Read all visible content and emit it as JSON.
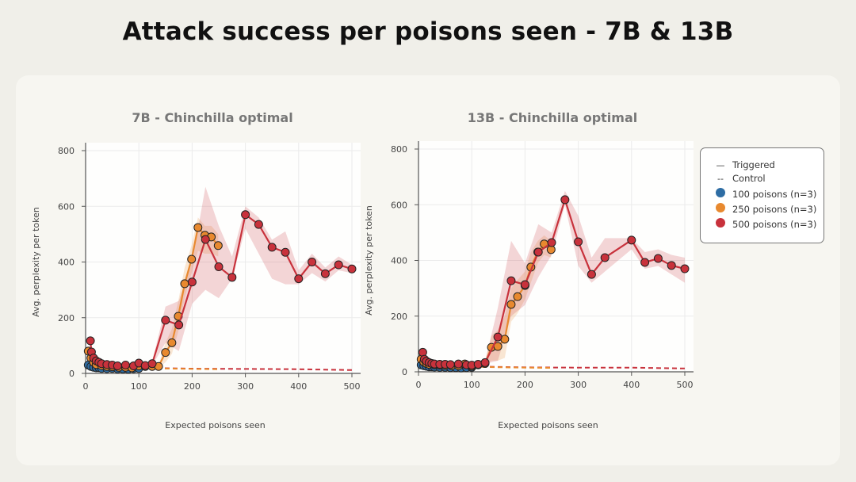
{
  "title": "Attack success per poisons seen - 7B & 13B",
  "legend": {
    "line_styles": [
      {
        "label": "Triggered",
        "style": "solid"
      },
      {
        "label": "Control",
        "style": "dashed"
      }
    ],
    "series": [
      {
        "label": "100 poisons (n=3)",
        "color": "#2e6da4"
      },
      {
        "label": "250 poisons (n=3)",
        "color": "#e8892f"
      },
      {
        "label": "500 poisons (n=3)",
        "color": "#c8323c"
      }
    ]
  },
  "chart_data": [
    {
      "type": "line",
      "title": "7B - Chinchilla optimal",
      "xlabel": "Expected poisons seen",
      "ylabel": "Avg. perplexity per token",
      "xlim": [
        0,
        500
      ],
      "ylim": [
        0,
        800
      ],
      "xticks": [
        0,
        100,
        200,
        300,
        400,
        500
      ],
      "yticks": [
        0,
        200,
        400,
        600,
        800
      ],
      "grid": true,
      "series": [
        {
          "name": "100 poisons (n=3)",
          "color": "#2e6da4",
          "x": [
            5,
            10,
            15,
            20,
            25,
            30,
            40,
            50,
            60,
            70,
            80,
            90,
            100
          ],
          "y": [
            30,
            25,
            22,
            20,
            20,
            18,
            17,
            18,
            16,
            16,
            15,
            17,
            18
          ]
        },
        {
          "name": "250 poisons (n=3)",
          "color": "#e8892f",
          "x": [
            5,
            10,
            15,
            20,
            30,
            40,
            50,
            62,
            75,
            87,
            100,
            112,
            125,
            137,
            150,
            162,
            174,
            186,
            199,
            211,
            224,
            236,
            249
          ],
          "y": [
            80,
            55,
            40,
            32,
            28,
            25,
            24,
            22,
            22,
            20,
            27,
            25,
            25,
            25,
            75,
            110,
            205,
            322,
            410,
            524,
            496,
            490,
            459
          ],
          "band_low": [
            60,
            40,
            30,
            25,
            22,
            20,
            20,
            18,
            18,
            16,
            20,
            20,
            20,
            20,
            40,
            70,
            150,
            270,
            360,
            440,
            430,
            430,
            420
          ],
          "band_high": [
            100,
            70,
            50,
            40,
            34,
            30,
            28,
            26,
            26,
            24,
            34,
            30,
            30,
            30,
            110,
            160,
            260,
            380,
            460,
            560,
            530,
            530,
            500
          ]
        },
        {
          "name": "500 poisons (n=3)",
          "color": "#c8323c",
          "x": [
            9,
            11,
            15,
            20,
            25,
            30,
            40,
            50,
            60,
            75,
            90,
            100,
            112,
            125,
            150,
            175,
            200,
            225,
            250,
            275,
            300,
            325,
            350,
            375,
            400,
            425,
            450,
            475,
            500
          ],
          "y": [
            117,
            77,
            55,
            45,
            40,
            35,
            32,
            30,
            27,
            30,
            27,
            37,
            28,
            35,
            191,
            174,
            328,
            481,
            383,
            345,
            570,
            535,
            453,
            435,
            340,
            400,
            358,
            390,
            375
          ],
          "band_low": [
            90,
            60,
            45,
            38,
            34,
            30,
            28,
            26,
            24,
            26,
            24,
            30,
            24,
            28,
            110,
            80,
            250,
            300,
            270,
            340,
            520,
            430,
            340,
            320,
            320,
            360,
            330,
            370,
            360
          ],
          "band_high": [
            140,
            95,
            65,
            52,
            46,
            40,
            36,
            34,
            30,
            34,
            30,
            44,
            32,
            42,
            240,
            260,
            400,
            670,
            530,
            420,
            600,
            560,
            480,
            510,
            370,
            430,
            380,
            420,
            390
          ]
        },
        {
          "name": "",
          "style": "dashed",
          "color": "#c8323c",
          "x": [
            0,
            100,
            200,
            300,
            400,
            500
          ],
          "y": [
            25,
            20,
            17,
            16,
            15,
            12
          ]
        },
        {
          "name": "",
          "style": "dashed",
          "color": "#e8892f",
          "x": [
            0,
            100,
            200,
            250
          ],
          "y": [
            22,
            19,
            16,
            15
          ]
        }
      ]
    },
    {
      "type": "line",
      "title": "13B - Chinchilla optimal",
      "xlabel": "Expected poisons seen",
      "ylabel": "Avg. perplexity per token",
      "xlim": [
        0,
        500
      ],
      "ylim": [
        0,
        800
      ],
      "xticks": [
        0,
        100,
        200,
        300,
        400,
        500
      ],
      "yticks": [
        0,
        200,
        400,
        600,
        800
      ],
      "grid": true,
      "series": [
        {
          "name": "100 poisons (n=3)",
          "color": "#2e6da4",
          "x": [
            5,
            10,
            15,
            20,
            25,
            30,
            40,
            50,
            60,
            70,
            80,
            90,
            100
          ],
          "y": [
            25,
            22,
            20,
            18,
            18,
            17,
            16,
            16,
            15,
            15,
            14,
            15,
            16
          ]
        },
        {
          "name": "250 poisons (n=3)",
          "color": "#e8892f",
          "x": [
            5,
            10,
            15,
            20,
            30,
            40,
            50,
            62,
            75,
            87,
            100,
            112,
            125,
            137,
            149,
            162,
            174,
            186,
            200,
            211,
            224,
            236,
            249
          ],
          "y": [
            45,
            35,
            30,
            27,
            25,
            24,
            23,
            22,
            22,
            28,
            20,
            25,
            30,
            88,
            91,
            117,
            242,
            270,
            310,
            376,
            430,
            459,
            439
          ],
          "band_low": [
            35,
            28,
            25,
            22,
            20,
            20,
            19,
            18,
            18,
            22,
            16,
            20,
            24,
            40,
            40,
            50,
            180,
            210,
            260,
            320,
            390,
            420,
            410
          ],
          "band_high": [
            55,
            42,
            36,
            32,
            30,
            28,
            27,
            26,
            26,
            34,
            24,
            30,
            36,
            130,
            150,
            200,
            300,
            330,
            360,
            430,
            470,
            490,
            470
          ]
        },
        {
          "name": "500 poisons (n=3)",
          "color": "#c8323c",
          "x": [
            8,
            11,
            15,
            20,
            25,
            30,
            40,
            50,
            60,
            75,
            90,
            100,
            112,
            125,
            149,
            174,
            200,
            225,
            250,
            275,
            300,
            325,
            350,
            400,
            425,
            450,
            475,
            500
          ],
          "y": [
            70,
            45,
            38,
            33,
            30,
            28,
            27,
            27,
            26,
            28,
            25,
            24,
            27,
            33,
            125,
            327,
            313,
            430,
            464,
            618,
            467,
            350,
            410,
            473,
            393,
            407,
            382,
            370
          ],
          "band_low": [
            50,
            35,
            30,
            28,
            26,
            24,
            23,
            23,
            22,
            24,
            21,
            20,
            23,
            28,
            40,
            200,
            240,
            340,
            420,
            600,
            380,
            320,
            360,
            440,
            370,
            380,
            350,
            320
          ],
          "band_high": [
            90,
            55,
            46,
            38,
            34,
            32,
            31,
            31,
            30,
            32,
            29,
            28,
            31,
            38,
            230,
            470,
            390,
            530,
            500,
            650,
            560,
            410,
            480,
            480,
            430,
            440,
            420,
            410
          ]
        },
        {
          "name": "",
          "style": "dashed",
          "color": "#c8323c",
          "x": [
            0,
            100,
            200,
            300,
            400,
            500
          ],
          "y": [
            22,
            19,
            16,
            15,
            15,
            12
          ]
        },
        {
          "name": "",
          "style": "dashed",
          "color": "#e8892f",
          "x": [
            0,
            100,
            200,
            250
          ],
          "y": [
            20,
            18,
            15,
            14
          ]
        }
      ]
    }
  ]
}
